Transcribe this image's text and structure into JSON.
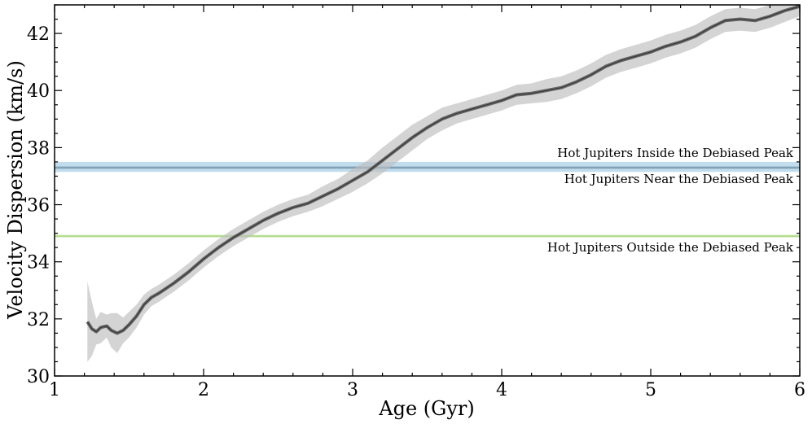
{
  "chart_data": {
    "type": "line",
    "xlabel": "Age (Gyr)",
    "ylabel": "Velocity Dispersion (km/s)",
    "xlim": [
      1,
      6
    ],
    "ylim": [
      30,
      43
    ],
    "xticks": [
      1,
      2,
      3,
      4,
      5,
      6
    ],
    "yticks": [
      30,
      32,
      34,
      36,
      38,
      40,
      42
    ],
    "grid": false,
    "series": [
      {
        "color": "#666666",
        "x": [
          1.22,
          1.25,
          1.28,
          1.31,
          1.35,
          1.38,
          1.42,
          1.46,
          1.5,
          1.55,
          1.6,
          1.65,
          1.7,
          1.8,
          1.9,
          2.0,
          2.1,
          2.2,
          2.3,
          2.4,
          2.5,
          2.6,
          2.7,
          2.8,
          2.9,
          3.0,
          3.1,
          3.2,
          3.3,
          3.4,
          3.5,
          3.6,
          3.7,
          3.8,
          3.9,
          4.0,
          4.1,
          4.2,
          4.3,
          4.4,
          4.5,
          4.6,
          4.7,
          4.8,
          4.9,
          5.0,
          5.1,
          5.2,
          5.3,
          5.4,
          5.5,
          5.6,
          5.7,
          5.8,
          5.9,
          6.0
        ],
        "y": [
          31.9,
          31.65,
          31.55,
          31.7,
          31.75,
          31.6,
          31.5,
          31.6,
          31.8,
          32.1,
          32.5,
          32.75,
          32.9,
          33.25,
          33.65,
          34.1,
          34.5,
          34.85,
          35.15,
          35.45,
          35.7,
          35.9,
          36.05,
          36.3,
          36.55,
          36.85,
          37.15,
          37.55,
          37.95,
          38.35,
          38.7,
          39.0,
          39.2,
          39.35,
          39.5,
          39.65,
          39.85,
          39.9,
          40.0,
          40.1,
          40.3,
          40.55,
          40.85,
          41.05,
          41.2,
          41.35,
          41.55,
          41.7,
          41.9,
          42.2,
          42.45,
          42.5,
          42.45,
          42.6,
          42.8,
          42.95
        ],
        "band_lower": [
          30.5,
          30.7,
          31.1,
          31.15,
          31.35,
          31.0,
          30.8,
          31.15,
          31.35,
          31.7,
          32.15,
          32.45,
          32.6,
          32.95,
          33.35,
          33.8,
          34.2,
          34.55,
          34.85,
          35.15,
          35.4,
          35.6,
          35.75,
          35.95,
          36.2,
          36.45,
          36.75,
          37.1,
          37.5,
          37.9,
          38.3,
          38.6,
          38.85,
          39.0,
          39.15,
          39.3,
          39.5,
          39.55,
          39.6,
          39.7,
          39.9,
          40.15,
          40.45,
          40.65,
          40.8,
          40.95,
          41.15,
          41.3,
          41.5,
          41.8,
          42.05,
          42.1,
          42.05,
          42.2,
          42.4,
          42.6
        ],
        "band_upper": [
          33.3,
          32.6,
          32.0,
          32.25,
          32.15,
          32.2,
          32.2,
          32.05,
          32.25,
          32.5,
          32.85,
          33.05,
          33.2,
          33.55,
          33.95,
          34.4,
          34.8,
          35.15,
          35.45,
          35.75,
          36.0,
          36.2,
          36.35,
          36.65,
          36.9,
          37.25,
          37.55,
          38.0,
          38.4,
          38.8,
          39.1,
          39.4,
          39.55,
          39.7,
          39.85,
          40.0,
          40.2,
          40.25,
          40.4,
          40.5,
          40.7,
          40.95,
          41.25,
          41.45,
          41.6,
          41.75,
          41.95,
          42.1,
          42.3,
          42.6,
          42.85,
          42.9,
          42.85,
          43.0,
          43.2,
          43.3
        ]
      }
    ],
    "hlines": [
      {
        "y": 37.3,
        "band": [
          37.15,
          37.5
        ],
        "color": "#1f77b4",
        "band_color": "#a6cde6",
        "label": "Hot Jupiters Inside the Debiased Peak",
        "label_pos": "above"
      },
      {
        "y": 37.3,
        "band": [
          37.25,
          37.35
        ],
        "color": "#7a9bb0",
        "band_color": "#9fb7c6",
        "label": "Hot Jupiters Near the Debiased Peak",
        "label_pos": "below"
      },
      {
        "y": 34.9,
        "band": [
          34.85,
          34.95
        ],
        "color": "#a8d67c",
        "band_color": "#cfe9b6",
        "label": "Hot Jupiters Outside the Debiased Peak",
        "label_pos": "below"
      }
    ]
  }
}
